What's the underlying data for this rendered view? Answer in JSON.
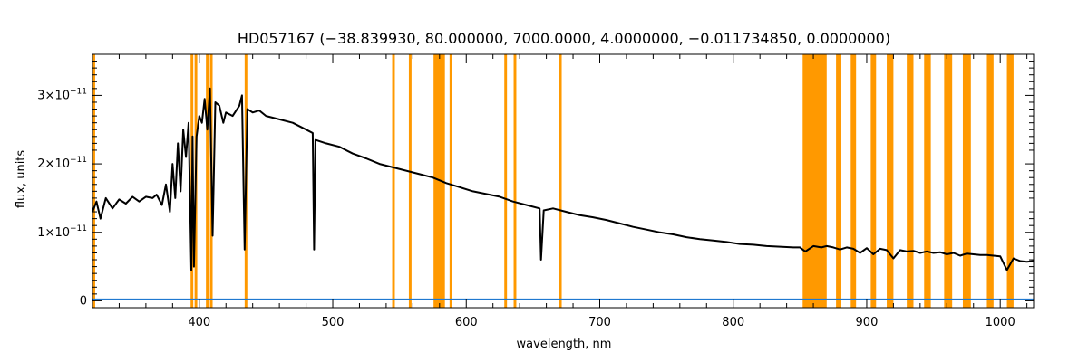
{
  "chart_data": {
    "type": "line",
    "title": "HD057167   (−38.839930, 80.000000, 7000.0000, 4.0000000, −0.011734850, 0.0000000)",
    "xlabel": "wavelength, nm",
    "ylabel": "flux, units",
    "xlim": [
      320,
      1025
    ],
    "ylim": [
      -1e-12,
      3.6e-11
    ],
    "x_ticks": [
      400,
      500,
      600,
      700,
      800,
      900,
      1000
    ],
    "y_ticks": [
      {
        "value": 0,
        "base": "0",
        "exp": ""
      },
      {
        "value": 1e-11,
        "base": "1×10",
        "exp": "−11"
      },
      {
        "value": 2e-11,
        "base": "2×10",
        "exp": "−11"
      },
      {
        "value": 3e-11,
        "base": "3×10",
        "exp": "−11"
      }
    ],
    "series": [
      {
        "color": "#000000",
        "points": [
          [
            320,
            1.3e-11
          ],
          [
            323,
            1.45e-11
          ],
          [
            326,
            1.2e-11
          ],
          [
            330,
            1.5e-11
          ],
          [
            335,
            1.35e-11
          ],
          [
            340,
            1.48e-11
          ],
          [
            345,
            1.42e-11
          ],
          [
            350,
            1.52e-11
          ],
          [
            355,
            1.45e-11
          ],
          [
            360,
            1.52e-11
          ],
          [
            365,
            1.5e-11
          ],
          [
            368,
            1.55e-11
          ],
          [
            372,
            1.4e-11
          ],
          [
            375,
            1.7e-11
          ],
          [
            378,
            1.3e-11
          ],
          [
            380,
            2e-11
          ],
          [
            382,
            1.5e-11
          ],
          [
            384,
            2.3e-11
          ],
          [
            386,
            1.6e-11
          ],
          [
            388,
            2.5e-11
          ],
          [
            390,
            2.1e-11
          ],
          [
            392,
            2.6e-11
          ],
          [
            394,
            4.5e-12
          ],
          [
            395,
            2.4e-11
          ],
          [
            396,
            5e-12
          ],
          [
            398,
            2.4e-11
          ],
          [
            400,
            2.7e-11
          ],
          [
            402,
            2.6e-11
          ],
          [
            404,
            2.95e-11
          ],
          [
            406,
            2.5e-11
          ],
          [
            408,
            3.1e-11
          ],
          [
            410,
            9.5e-12
          ],
          [
            412,
            2.9e-11
          ],
          [
            415,
            2.85e-11
          ],
          [
            418,
            2.6e-11
          ],
          [
            420,
            2.75e-11
          ],
          [
            425,
            2.7e-11
          ],
          [
            430,
            2.85e-11
          ],
          [
            432,
            3e-11
          ],
          [
            434,
            7.5e-12
          ],
          [
            436,
            2.8e-11
          ],
          [
            440,
            2.75e-11
          ],
          [
            445,
            2.78e-11
          ],
          [
            450,
            2.7e-11
          ],
          [
            460,
            2.65e-11
          ],
          [
            470,
            2.6e-11
          ],
          [
            480,
            2.5e-11
          ],
          [
            485,
            2.45e-11
          ],
          [
            486,
            7.5e-12
          ],
          [
            487,
            2.35e-11
          ],
          [
            495,
            2.3e-11
          ],
          [
            505,
            2.25e-11
          ],
          [
            515,
            2.15e-11
          ],
          [
            525,
            2.08e-11
          ],
          [
            535,
            2e-11
          ],
          [
            545,
            1.95e-11
          ],
          [
            555,
            1.9e-11
          ],
          [
            565,
            1.85e-11
          ],
          [
            575,
            1.8e-11
          ],
          [
            585,
            1.72e-11
          ],
          [
            595,
            1.66e-11
          ],
          [
            605,
            1.6e-11
          ],
          [
            615,
            1.56e-11
          ],
          [
            625,
            1.52e-11
          ],
          [
            635,
            1.45e-11
          ],
          [
            645,
            1.4e-11
          ],
          [
            655,
            1.35e-11
          ],
          [
            656,
            6e-12
          ],
          [
            658,
            1.32e-11
          ],
          [
            665,
            1.35e-11
          ],
          [
            675,
            1.3e-11
          ],
          [
            685,
            1.25e-11
          ],
          [
            695,
            1.22e-11
          ],
          [
            705,
            1.18e-11
          ],
          [
            715,
            1.13e-11
          ],
          [
            725,
            1.08e-11
          ],
          [
            735,
            1.04e-11
          ],
          [
            745,
            1e-11
          ],
          [
            755,
            9.7e-12
          ],
          [
            765,
            9.3e-12
          ],
          [
            775,
            9e-12
          ],
          [
            785,
            8.8e-12
          ],
          [
            795,
            8.6e-12
          ],
          [
            805,
            8.3e-12
          ],
          [
            815,
            8.2e-12
          ],
          [
            825,
            8e-12
          ],
          [
            835,
            7.9e-12
          ],
          [
            845,
            7.8e-12
          ],
          [
            850,
            7.8e-12
          ],
          [
            854,
            7.2e-12
          ],
          [
            860,
            8e-12
          ],
          [
            866,
            7.8e-12
          ],
          [
            870,
            8e-12
          ],
          [
            875,
            7.8e-12
          ],
          [
            880,
            7.5e-12
          ],
          [
            885,
            7.8e-12
          ],
          [
            890,
            7.6e-12
          ],
          [
            895,
            7e-12
          ],
          [
            900,
            7.7e-12
          ],
          [
            905,
            6.8e-12
          ],
          [
            910,
            7.6e-12
          ],
          [
            915,
            7.4e-12
          ],
          [
            920,
            6.2e-12
          ],
          [
            925,
            7.4e-12
          ],
          [
            930,
            7.2e-12
          ],
          [
            935,
            7.3e-12
          ],
          [
            940,
            7e-12
          ],
          [
            945,
            7.2e-12
          ],
          [
            950,
            7e-12
          ],
          [
            955,
            7.1e-12
          ],
          [
            960,
            6.8e-12
          ],
          [
            965,
            7e-12
          ],
          [
            970,
            6.6e-12
          ],
          [
            975,
            6.9e-12
          ],
          [
            980,
            6.8e-12
          ],
          [
            985,
            6.7e-12
          ],
          [
            990,
            6.7e-12
          ],
          [
            995,
            6.6e-12
          ],
          [
            1000,
            6.5e-12
          ],
          [
            1005,
            4.5e-12
          ],
          [
            1010,
            6.2e-12
          ],
          [
            1015,
            5.8e-12
          ],
          [
            1020,
            5.7e-12
          ],
          [
            1025,
            5.8e-12
          ]
        ]
      },
      {
        "color": "#1f78d0",
        "points": [
          [
            320,
            2e-13
          ],
          [
            1025,
            2e-13
          ]
        ]
      }
    ],
    "masked_ranges": [
      [
        320.5,
        322
      ],
      [
        393.5,
        395.5
      ],
      [
        396.5,
        398.5
      ],
      [
        405,
        407
      ],
      [
        408,
        410
      ],
      [
        434,
        436
      ],
      [
        544.5,
        546.5
      ],
      [
        557,
        559
      ],
      [
        575.5,
        584
      ],
      [
        587.5,
        589.5
      ],
      [
        628.5,
        630.5
      ],
      [
        635.5,
        637.5
      ],
      [
        669.5,
        671.5
      ],
      [
        852,
        870
      ],
      [
        877,
        881
      ],
      [
        888,
        892
      ],
      [
        903,
        907
      ],
      [
        915,
        920
      ],
      [
        930,
        935
      ],
      [
        943,
        948
      ],
      [
        958,
        964
      ],
      [
        972,
        978
      ],
      [
        990,
        995
      ],
      [
        1005,
        1010
      ]
    ],
    "mask_color": "#ff9900"
  }
}
